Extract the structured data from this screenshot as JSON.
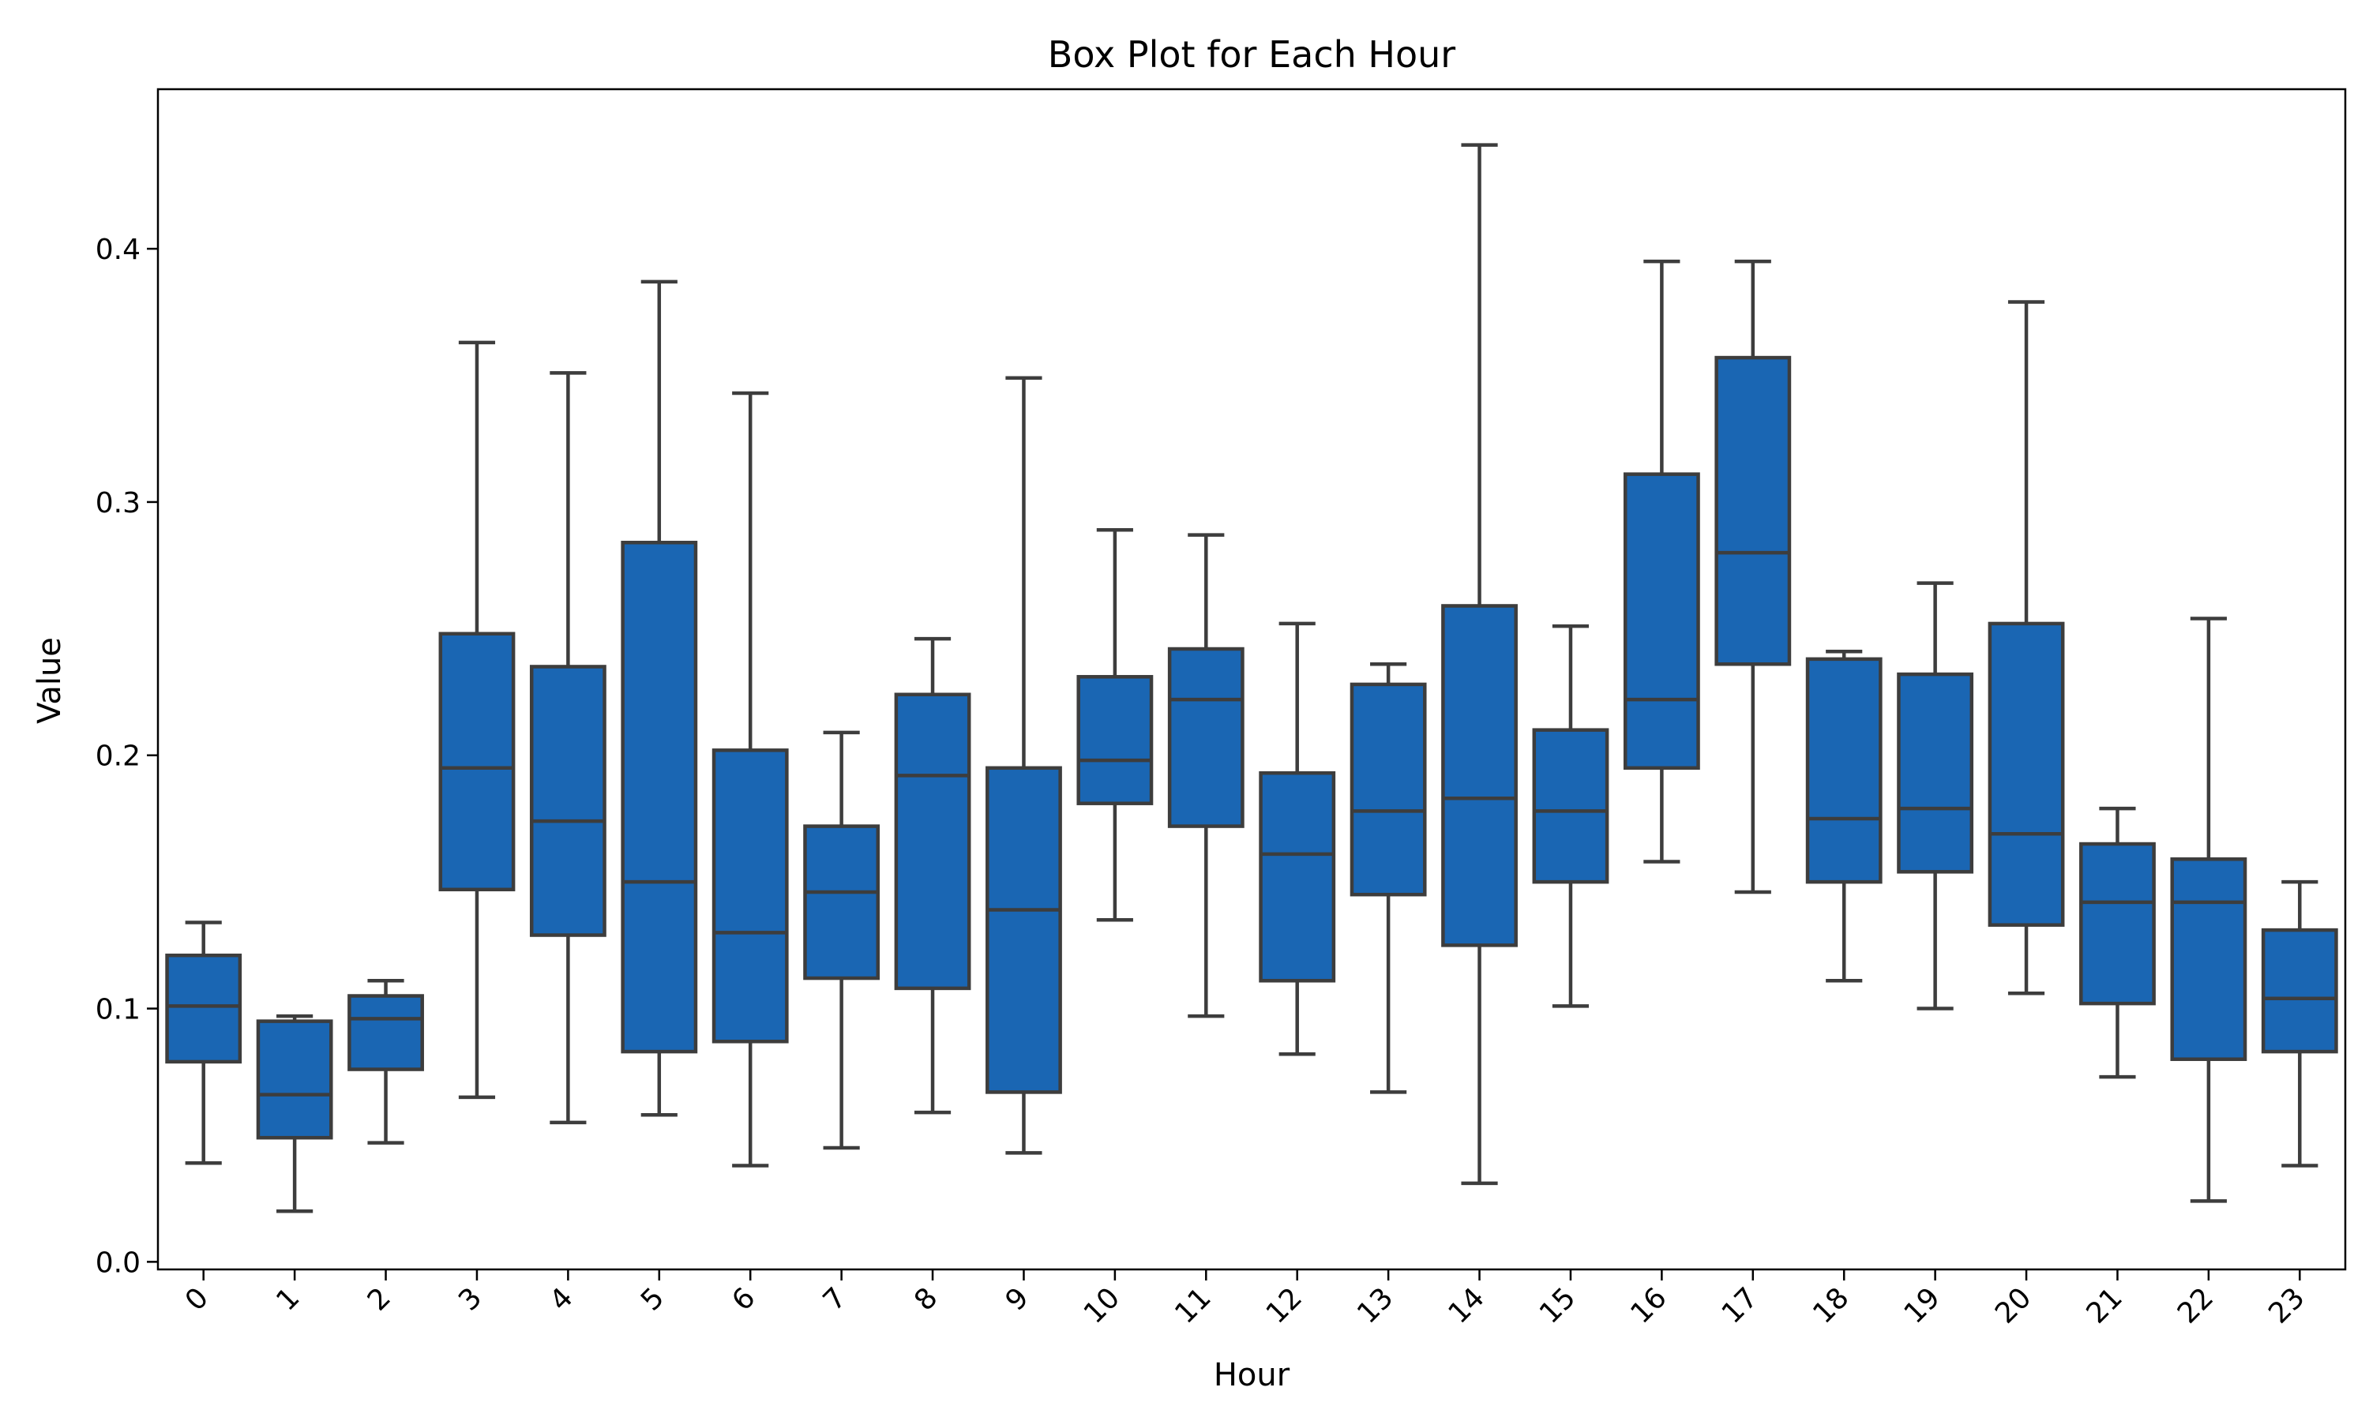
{
  "chart_data": {
    "type": "box",
    "title": "Box Plot for Each Hour",
    "xlabel": "Hour",
    "ylabel": "Value",
    "ylim": [
      -0.003,
      0.463
    ],
    "yticks": [
      0.0,
      0.1,
      0.2,
      0.3,
      0.4
    ],
    "ytick_labels": [
      "0.0",
      "0.1",
      "0.2",
      "0.3",
      "0.4"
    ],
    "box_color": "#1a66b3",
    "line_color": "#3d3d3d",
    "grid": false,
    "categories": [
      "0",
      "1",
      "2",
      "3",
      "4",
      "5",
      "6",
      "7",
      "8",
      "9",
      "10",
      "11",
      "12",
      "13",
      "14",
      "15",
      "16",
      "17",
      "18",
      "19",
      "20",
      "21",
      "22",
      "23"
    ],
    "boxes": [
      {
        "whislo": 0.039,
        "q1": 0.079,
        "med": 0.101,
        "q3": 0.121,
        "whishi": 0.134
      },
      {
        "whislo": 0.02,
        "q1": 0.049,
        "med": 0.066,
        "q3": 0.095,
        "whishi": 0.097
      },
      {
        "whislo": 0.047,
        "q1": 0.076,
        "med": 0.096,
        "q3": 0.105,
        "whishi": 0.111
      },
      {
        "whislo": 0.065,
        "q1": 0.147,
        "med": 0.195,
        "q3": 0.248,
        "whishi": 0.363
      },
      {
        "whislo": 0.055,
        "q1": 0.129,
        "med": 0.174,
        "q3": 0.235,
        "whishi": 0.351
      },
      {
        "whislo": 0.058,
        "q1": 0.083,
        "med": 0.15,
        "q3": 0.284,
        "whishi": 0.387
      },
      {
        "whislo": 0.038,
        "q1": 0.087,
        "med": 0.13,
        "q3": 0.202,
        "whishi": 0.343
      },
      {
        "whislo": 0.045,
        "q1": 0.112,
        "med": 0.146,
        "q3": 0.172,
        "whishi": 0.209
      },
      {
        "whislo": 0.059,
        "q1": 0.108,
        "med": 0.192,
        "q3": 0.224,
        "whishi": 0.246
      },
      {
        "whislo": 0.043,
        "q1": 0.067,
        "med": 0.139,
        "q3": 0.195,
        "whishi": 0.349
      },
      {
        "whislo": 0.135,
        "q1": 0.181,
        "med": 0.198,
        "q3": 0.231,
        "whishi": 0.289
      },
      {
        "whislo": 0.097,
        "q1": 0.172,
        "med": 0.222,
        "q3": 0.242,
        "whishi": 0.287
      },
      {
        "whislo": 0.082,
        "q1": 0.111,
        "med": 0.161,
        "q3": 0.193,
        "whishi": 0.252
      },
      {
        "whislo": 0.067,
        "q1": 0.145,
        "med": 0.178,
        "q3": 0.228,
        "whishi": 0.236
      },
      {
        "whislo": 0.031,
        "q1": 0.125,
        "med": 0.183,
        "q3": 0.259,
        "whishi": 0.441
      },
      {
        "whislo": 0.101,
        "q1": 0.15,
        "med": 0.178,
        "q3": 0.21,
        "whishi": 0.251
      },
      {
        "whislo": 0.158,
        "q1": 0.195,
        "med": 0.222,
        "q3": 0.311,
        "whishi": 0.395
      },
      {
        "whislo": 0.146,
        "q1": 0.236,
        "med": 0.28,
        "q3": 0.357,
        "whishi": 0.395
      },
      {
        "whislo": 0.111,
        "q1": 0.15,
        "med": 0.175,
        "q3": 0.238,
        "whishi": 0.241
      },
      {
        "whislo": 0.1,
        "q1": 0.154,
        "med": 0.179,
        "q3": 0.232,
        "whishi": 0.268
      },
      {
        "whislo": 0.106,
        "q1": 0.133,
        "med": 0.169,
        "q3": 0.252,
        "whishi": 0.379
      },
      {
        "whislo": 0.073,
        "q1": 0.102,
        "med": 0.142,
        "q3": 0.165,
        "whishi": 0.179
      },
      {
        "whislo": 0.024,
        "q1": 0.08,
        "med": 0.142,
        "q3": 0.159,
        "whishi": 0.254
      },
      {
        "whislo": 0.038,
        "q1": 0.083,
        "med": 0.104,
        "q3": 0.131,
        "whishi": 0.15
      }
    ]
  }
}
